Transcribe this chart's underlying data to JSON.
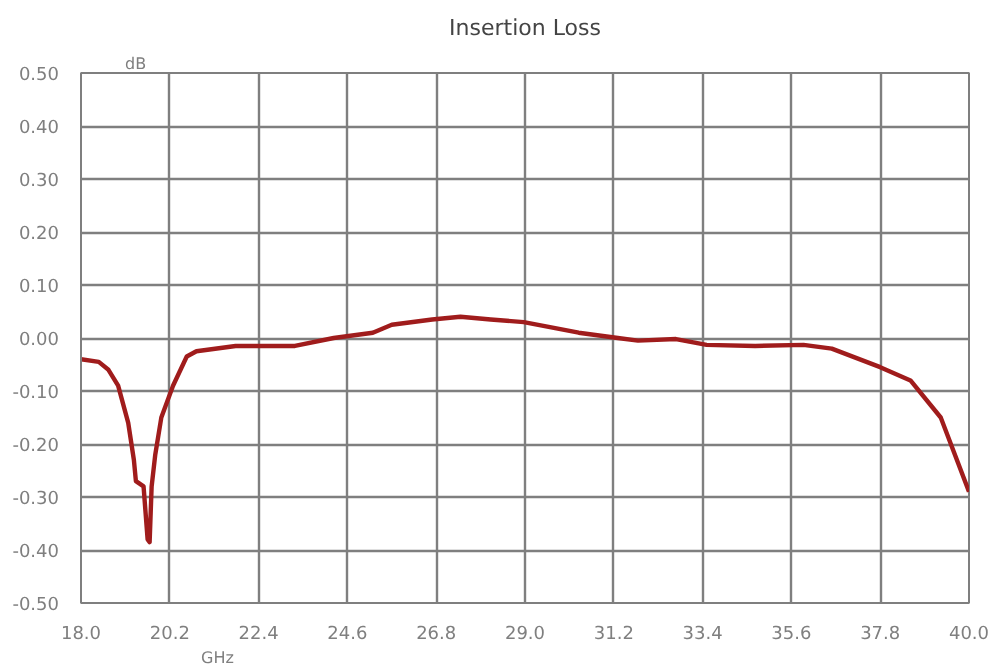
{
  "chart_data": {
    "type": "line",
    "title": "Insertion Loss",
    "xlabel": "GHz",
    "ylabel": "dB",
    "xlim": [
      18.0,
      40.0
    ],
    "ylim": [
      -0.5,
      0.5
    ],
    "xticks": [
      {
        "value": 18.0,
        "label": "18.0"
      },
      {
        "value": 20.2,
        "label": "20.2"
      },
      {
        "value": 22.4,
        "label": "22.4"
      },
      {
        "value": 24.6,
        "label": "24.6"
      },
      {
        "value": 26.8,
        "label": "26.8"
      },
      {
        "value": 29.0,
        "label": "29.0"
      },
      {
        "value": 31.2,
        "label": "31.2"
      },
      {
        "value": 33.4,
        "label": "33.4"
      },
      {
        "value": 35.6,
        "label": "35.6"
      },
      {
        "value": 37.8,
        "label": "37.8"
      },
      {
        "value": 40.0,
        "label": "40.0"
      }
    ],
    "yticks": [
      {
        "value": -0.5,
        "label": "-0.50"
      },
      {
        "value": -0.4,
        "label": "-0.40"
      },
      {
        "value": -0.3,
        "label": "-0.30"
      },
      {
        "value": -0.2,
        "label": "-0.20"
      },
      {
        "value": -0.1,
        "label": "-0.10"
      },
      {
        "value": 0,
        "label": "0.00"
      },
      {
        "value": 0.1,
        "label": "0.10"
      },
      {
        "value": 0.2,
        "label": "0.20"
      },
      {
        "value": 0.3,
        "label": "0.30"
      },
      {
        "value": 0.4,
        "label": "0.40"
      },
      {
        "value": 0.5,
        "label": "0.50"
      }
    ],
    "grid": true,
    "series": [
      {
        "color": "#a01c1c",
        "x": [
          18.0,
          18.44,
          18.68,
          18.92,
          19.17,
          19.31,
          19.36,
          19.55,
          19.65,
          19.7,
          19.75,
          19.84,
          19.99,
          20.28,
          20.62,
          20.86,
          21.83,
          23.3,
          24.26,
          25.23,
          25.7,
          26.7,
          27.4,
          28.15,
          28.97,
          30.33,
          31.3,
          31.8,
          32.74,
          33.5,
          34.7,
          35.9,
          36.6,
          37.8,
          38.55,
          39.3,
          40.0
        ],
        "values": [
          -0.04,
          -0.045,
          -0.06,
          -0.09,
          -0.16,
          -0.23,
          -0.27,
          -0.28,
          -0.38,
          -0.385,
          -0.28,
          -0.22,
          -0.15,
          -0.09,
          -0.035,
          -0.025,
          -0.015,
          -0.015,
          0.0,
          0.01,
          0.025,
          0.035,
          0.04,
          0.035,
          0.03,
          0.01,
          0.0,
          -0.005,
          -0.002,
          -0.013,
          -0.015,
          -0.013,
          -0.02,
          -0.055,
          -0.08,
          -0.15,
          -0.29
        ]
      }
    ]
  }
}
